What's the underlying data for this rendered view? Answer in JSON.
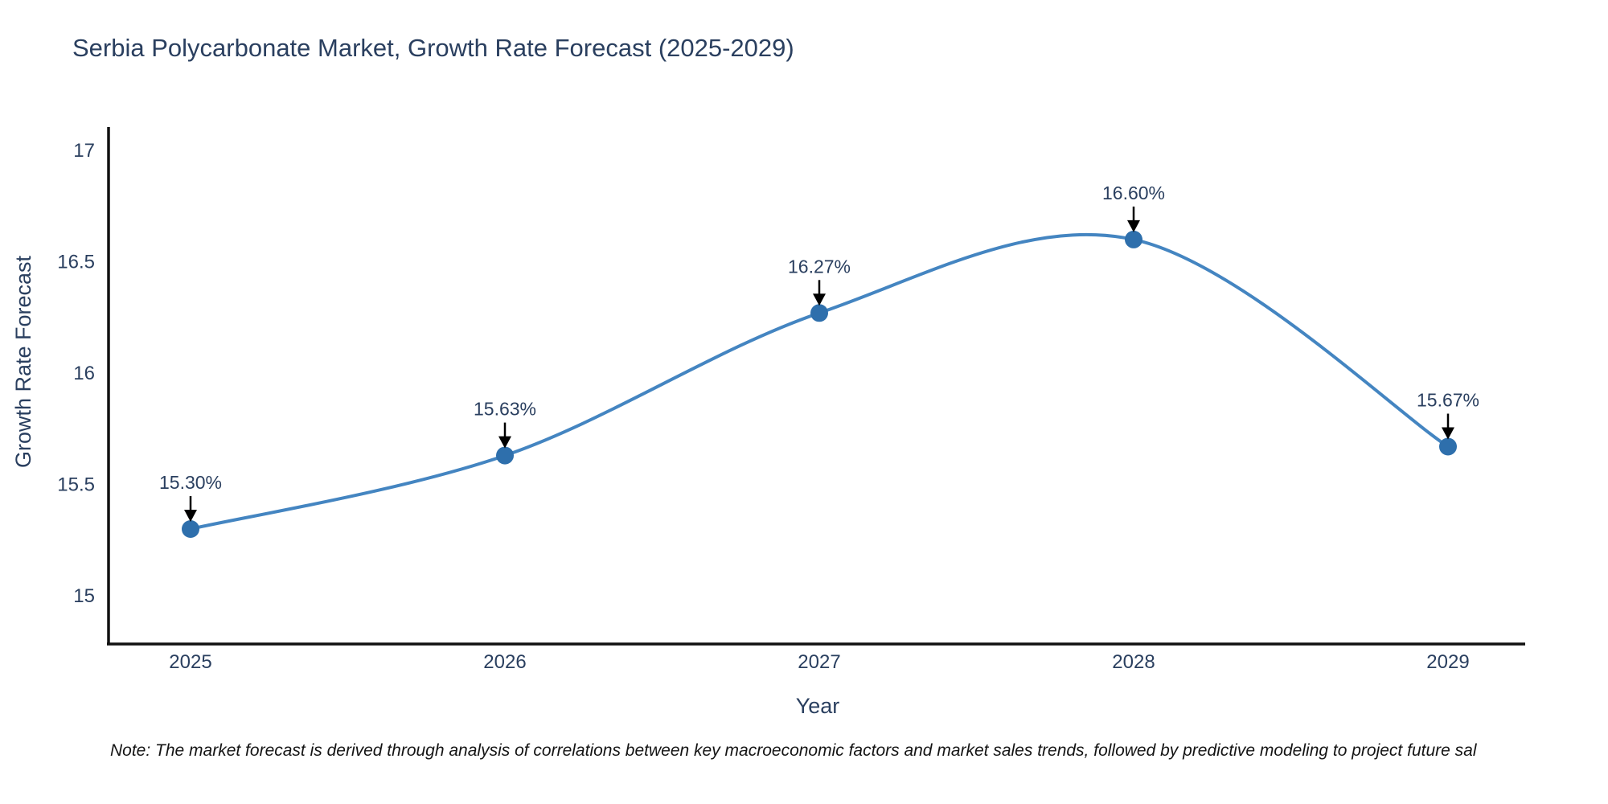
{
  "title": "Serbia Polycarbonate Market, Growth Rate Forecast (2025-2029)",
  "note": "Note: The market forecast is derived through analysis of correlations between key macroeconomic factors and market sales trends, followed by predictive modeling to project future sal",
  "chart_data": {
    "type": "line",
    "title": "Serbia Polycarbonate Market, Growth Rate Forecast (2025-2029)",
    "xlabel": "Year",
    "ylabel": "Growth Rate Forecast",
    "x": [
      "2025",
      "2026",
      "2027",
      "2028",
      "2029"
    ],
    "values": [
      15.3,
      15.63,
      16.27,
      16.6,
      15.67
    ],
    "point_labels": [
      "15.30%",
      "15.63%",
      "16.27%",
      "16.60%",
      "15.67%"
    ],
    "yticks": [
      15,
      15.5,
      16,
      16.5,
      17
    ],
    "ytick_labels": [
      "15",
      "15.5",
      "16",
      "16.5",
      "17"
    ],
    "ylim": [
      14.8,
      17.12
    ],
    "grid": false,
    "legend": false,
    "line_shape": "spline",
    "line_color": "#4485c1",
    "marker_color": "#2e6fac",
    "axis_color": "#111111",
    "text_color": "#2a3f5f",
    "arrow_color": "#000000"
  }
}
